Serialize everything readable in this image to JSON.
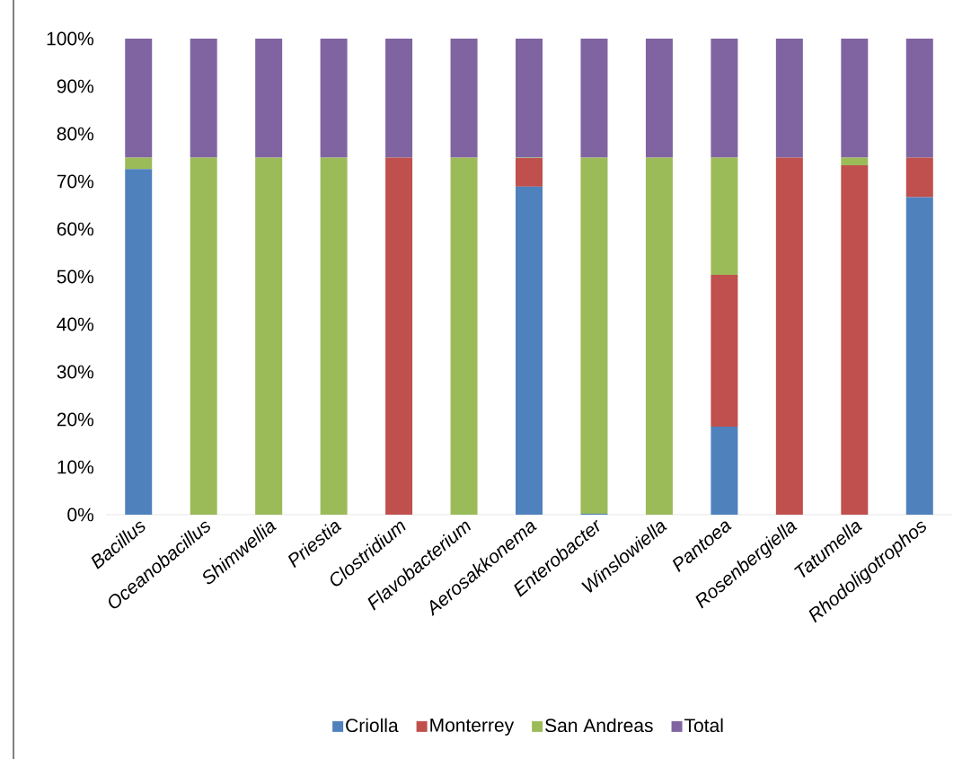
{
  "chart_data": {
    "type": "bar",
    "stacked": true,
    "legend": "bottom",
    "categories": [
      "Bacillus",
      "Oceanobacillus",
      "Shimwellia",
      "Priestia",
      "Clostridium",
      "Flavobacterium",
      "Aerosakkonema",
      "Enterobacter",
      "Winslowiella",
      "Pantoea",
      "Rosenbergiella",
      "Tatumella",
      "Rhodoligotrophos"
    ],
    "series": [
      {
        "name": "Criolla",
        "color": "#4f81bd",
        "values": [
          72.6,
          0,
          0,
          0,
          0,
          0,
          68.9,
          0.2,
          0,
          18.5,
          0,
          0,
          66.7
        ]
      },
      {
        "name": "Monterrey",
        "color": "#c0504d",
        "values": [
          0,
          0,
          0,
          0,
          75,
          0,
          6,
          0,
          0,
          31.9,
          75,
          73.4,
          8.3
        ]
      },
      {
        "name": "San Andreas",
        "color": "#9bbb59",
        "values": [
          2.4,
          75,
          75,
          75,
          0,
          75,
          0.1,
          74.8,
          75,
          24.6,
          0,
          1.6,
          0
        ]
      },
      {
        "name": "Total",
        "color": "#8064a2",
        "values": [
          25,
          25,
          25,
          25,
          25,
          25,
          25,
          25,
          25,
          25,
          25,
          25,
          25
        ]
      }
    ],
    "ylim": [
      0,
      100
    ],
    "yticks": [
      {
        "value": 0,
        "label": "0%"
      },
      {
        "value": 10,
        "label": "10%"
      },
      {
        "value": 20,
        "label": "20%"
      },
      {
        "value": 30,
        "label": "30%"
      },
      {
        "value": 40,
        "label": "40%"
      },
      {
        "value": 50,
        "label": "50%"
      },
      {
        "value": 60,
        "label": "60%"
      },
      {
        "value": 70,
        "label": "70%"
      },
      {
        "value": 80,
        "label": "80%"
      },
      {
        "value": 90,
        "label": "90%"
      },
      {
        "value": 100,
        "label": "100%"
      }
    ]
  }
}
